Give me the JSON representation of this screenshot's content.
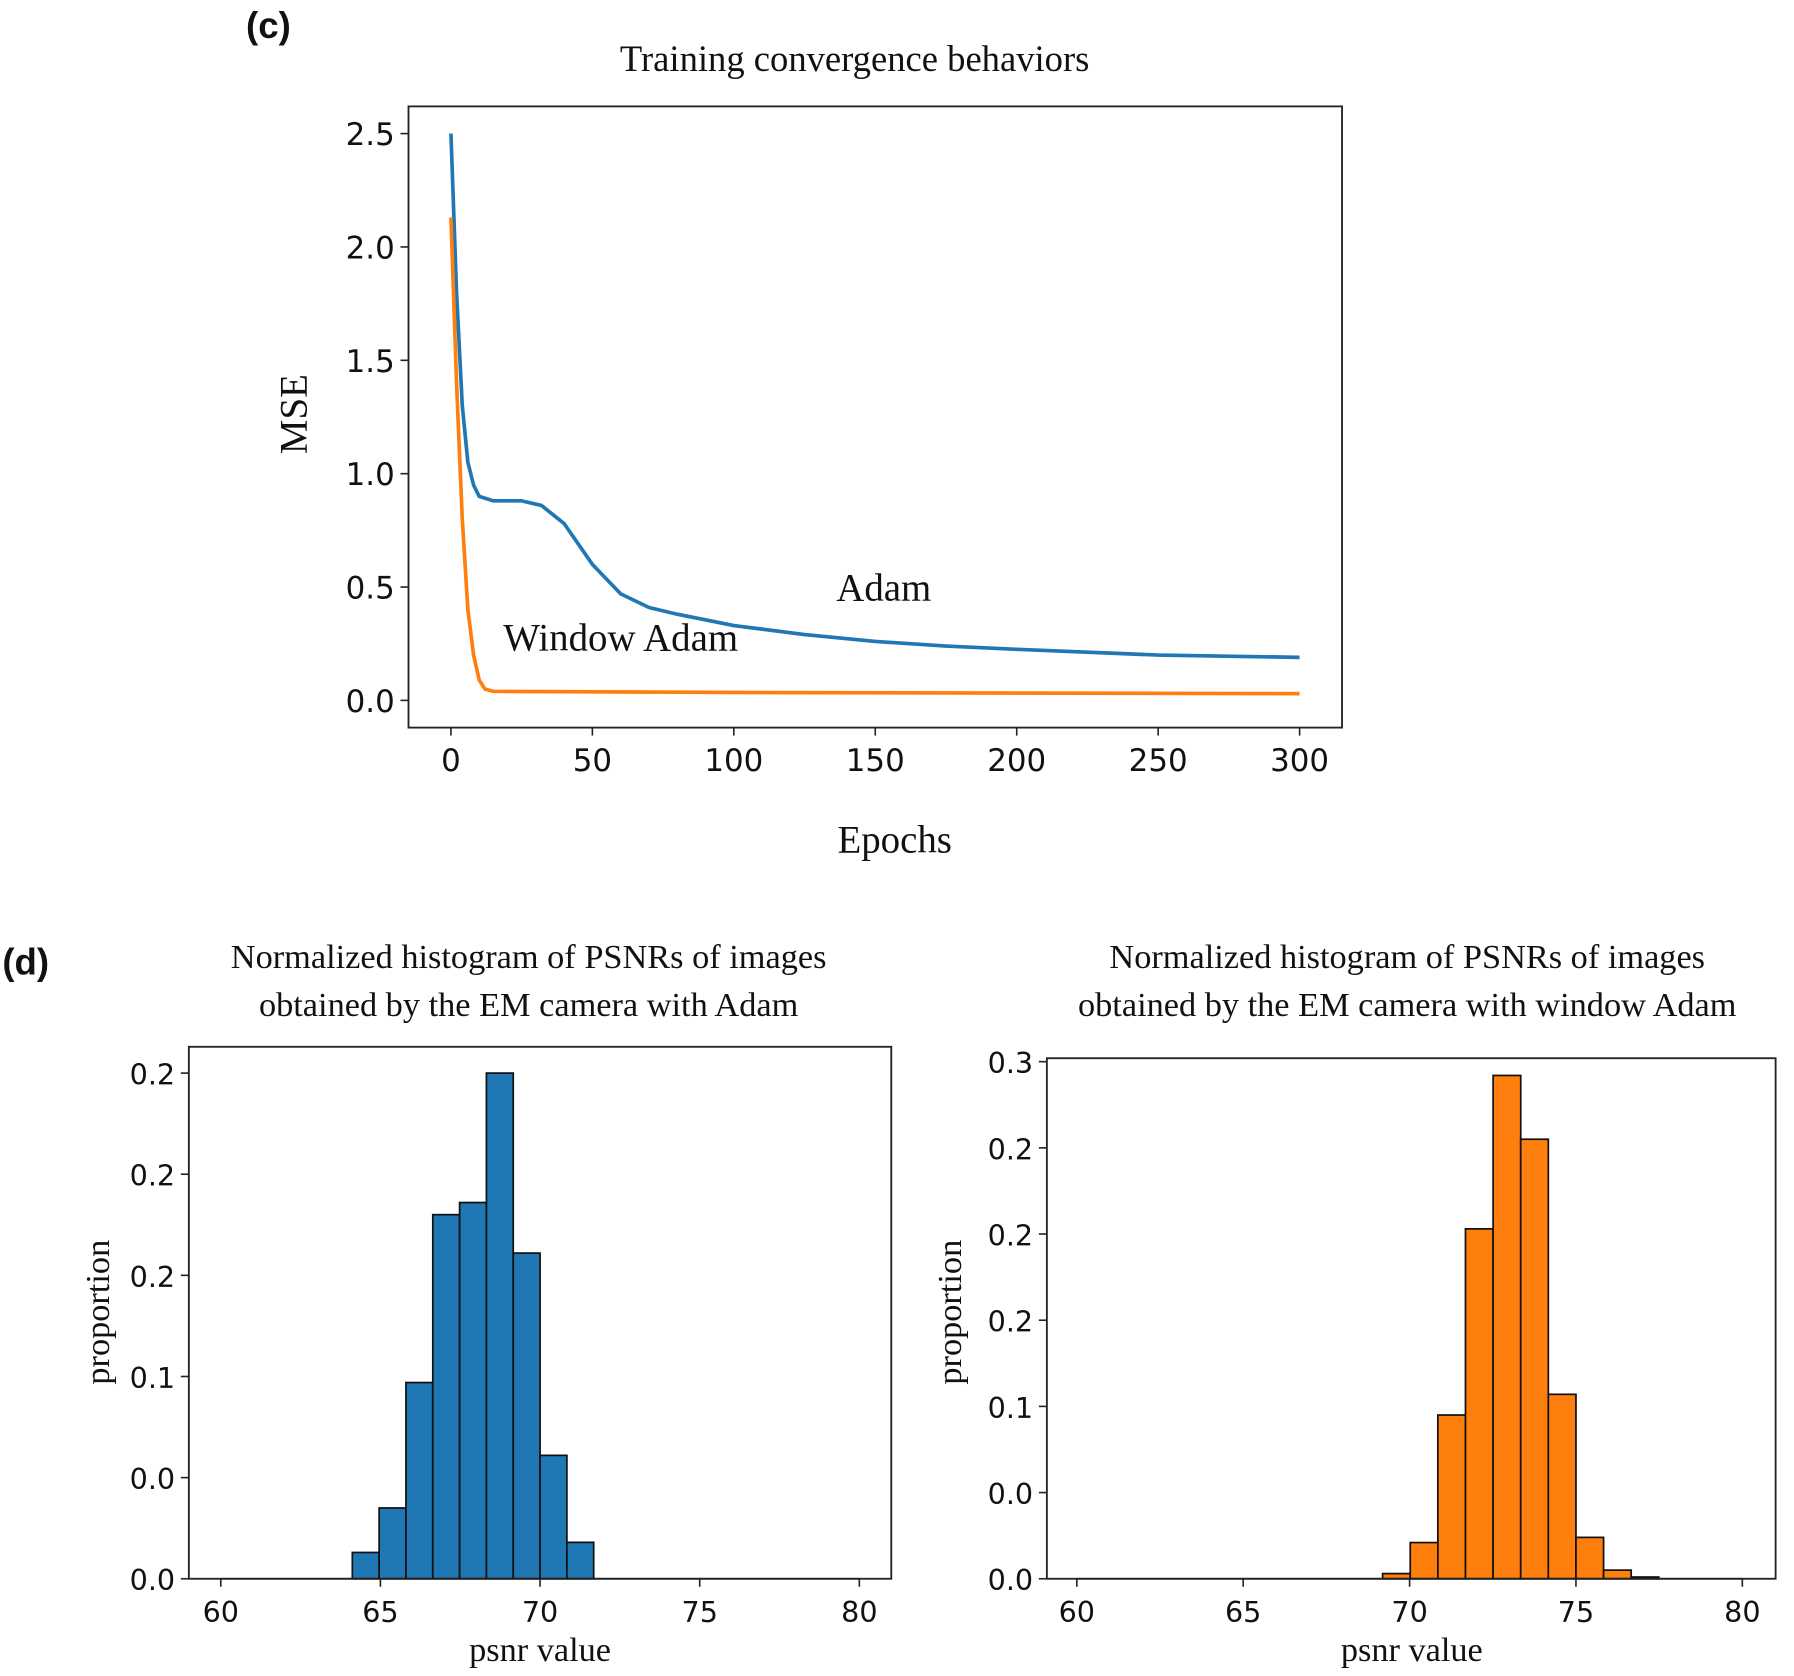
{
  "panel_c_label": "(c)",
  "panel_d_label": "(d)",
  "chart_data": [
    {
      "type": "line",
      "title": "Training convergence behaviors",
      "xlabel": "Epochs",
      "ylabel": "MSE",
      "xlim": [
        -15,
        315
      ],
      "ylim": [
        -0.12,
        2.62
      ],
      "xticks": [
        0,
        50,
        100,
        150,
        200,
        250,
        300
      ],
      "xtick_labels": [
        "0",
        "50",
        "100",
        "150",
        "200",
        "250",
        "300"
      ],
      "yticks": [
        0,
        0.5,
        1.0,
        1.5,
        2.0,
        2.5
      ],
      "ytick_labels": [
        "0.0",
        "0.5",
        "1.0",
        "1.5",
        "2.0",
        "2.5"
      ],
      "series": [
        {
          "name": "Adam",
          "label_text": "Adam",
          "color": "#1f77b4",
          "x": [
            0,
            2,
            4,
            6,
            8,
            10,
            15,
            25,
            32,
            40,
            50,
            60,
            70,
            80,
            100,
            125,
            150,
            175,
            200,
            250,
            300
          ],
          "y": [
            2.5,
            1.8,
            1.3,
            1.05,
            0.95,
            0.9,
            0.88,
            0.88,
            0.86,
            0.78,
            0.6,
            0.47,
            0.41,
            0.38,
            0.33,
            0.29,
            0.26,
            0.24,
            0.225,
            0.2,
            0.19
          ],
          "label_at": [
            153,
            0.44
          ]
        },
        {
          "name": "Window Adam",
          "label_text": "Window Adam",
          "color": "#ff7f0e",
          "x": [
            0,
            2,
            4,
            6,
            8,
            10,
            12,
            15,
            100,
            300
          ],
          "y": [
            2.13,
            1.4,
            0.8,
            0.4,
            0.2,
            0.09,
            0.05,
            0.04,
            0.035,
            0.03
          ],
          "label_at": [
            60,
            0.22
          ]
        }
      ]
    },
    {
      "type": "bar",
      "title": [
        "Normalized histogram of PSNRs of images",
        "obtained by the EM camera with Adam"
      ],
      "xlabel": "psnr value",
      "ylabel": "proportion",
      "xlim": [
        59,
        81
      ],
      "ylim": [
        0,
        0.263
      ],
      "xticks": [
        60,
        65,
        70,
        75,
        80
      ],
      "xtick_labels": [
        "60",
        "65",
        "70",
        "75",
        "80"
      ],
      "yticks": [
        0,
        0.05,
        0.1,
        0.15,
        0.2,
        0.25
      ],
      "ytick_labels": [
        "0.0",
        "0.0",
        "0.1",
        "0.2",
        "0.2",
        "0.2"
      ],
      "color": "#1f77b4",
      "bin_start": 64.12,
      "bin_width": 0.84,
      "values": [
        0.013,
        0.035,
        0.097,
        0.18,
        0.186,
        0.25,
        0.161,
        0.061,
        0.018
      ]
    },
    {
      "type": "bar",
      "title": [
        "Normalized histogram of PSNRs of images",
        "obtained by the EM camera with window Adam"
      ],
      "xlabel": "psnr value",
      "ylabel": "proportion",
      "xlim": [
        59.1,
        81
      ],
      "ylim": [
        0,
        0.302
      ],
      "xticks": [
        60,
        65,
        70,
        75,
        80
      ],
      "xtick_labels": [
        "60",
        "65",
        "70",
        "75",
        "80"
      ],
      "yticks": [
        0,
        0.05,
        0.1,
        0.15,
        0.2,
        0.25,
        0.3
      ],
      "ytick_labels": [
        "0.0",
        "0.0",
        "0.1",
        "0.2",
        "0.2",
        "0.2",
        "0.3"
      ],
      "color": "#ff7f0e",
      "bin_start": 69.19,
      "bin_width": 0.83,
      "values": [
        0.003,
        0.021,
        0.095,
        0.203,
        0.292,
        0.255,
        0.107,
        0.024,
        0.005,
        0.001
      ]
    }
  ]
}
